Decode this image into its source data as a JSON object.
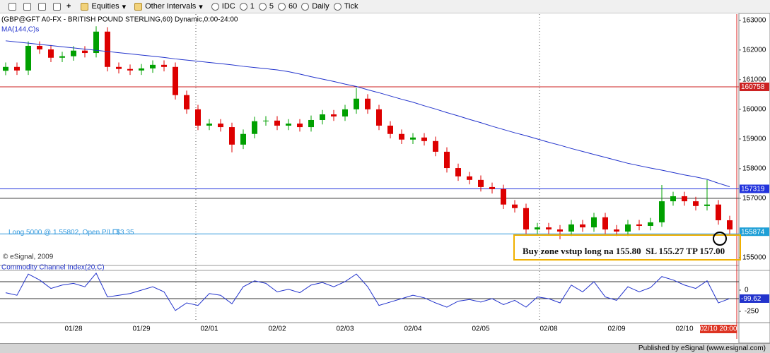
{
  "toolbar": {
    "items": [
      "Equities",
      "Other Intervals",
      "IDC",
      "1",
      "5",
      "60",
      "Daily",
      "Tick"
    ]
  },
  "annotation": "Buy zone vstup long na 155.80  SL 155.27 TP 157.00",
  "footer": "Published by eSignal (www.esignal.com)",
  "chart_data": [
    {
      "type": "candlestick",
      "title": "(GBP@GFT A0-FX - BRITISH POUND STERLING,60) Dynamic,0:00-24:00",
      "copyright": "© eSignal, 2009",
      "up_color": "#00a000",
      "down_color": "#dd0000",
      "categories": [
        null,
        null,
        null,
        null,
        null,
        null,
        "01/28",
        null,
        null,
        null,
        null,
        null,
        "01/29",
        null,
        null,
        null,
        null,
        null,
        "02/01",
        null,
        null,
        null,
        null,
        null,
        "02/02",
        null,
        null,
        null,
        null,
        null,
        "02/03",
        null,
        null,
        null,
        null,
        null,
        "02/04",
        null,
        null,
        null,
        null,
        null,
        "02/05",
        null,
        null,
        null,
        null,
        null,
        "02/08",
        null,
        null,
        null,
        null,
        null,
        "02/09",
        null,
        null,
        null,
        null,
        null,
        "02/10",
        null,
        null,
        "02/10 20:00",
        null
      ],
      "open": [
        161.3,
        161.43,
        161.31,
        162.14,
        162.02,
        161.74,
        161.79,
        161.98,
        161.9,
        162.62,
        161.43,
        161.36,
        161.31,
        161.38,
        161.5,
        161.43,
        160.48,
        160.0,
        159.45,
        159.52,
        159.4,
        158.81,
        159.17,
        159.6,
        159.62,
        159.45,
        159.52,
        159.4,
        159.64,
        159.83,
        159.76,
        160.0,
        160.36,
        160.0,
        159.45,
        159.17,
        158.98,
        159.05,
        158.93,
        158.57,
        158.02,
        157.74,
        157.62,
        157.38,
        157.31,
        156.79,
        156.67,
        155.95,
        156.02,
        155.95,
        155.88,
        156.12,
        156.02,
        156.36,
        155.95,
        155.88,
        156.12,
        156.07,
        156.19,
        156.9,
        157.07,
        156.9,
        156.74,
        156.79,
        156.26
      ],
      "high": [
        161.58,
        161.58,
        162.29,
        162.29,
        162.17,
        161.94,
        162.13,
        162.13,
        162.8,
        162.77,
        161.58,
        161.51,
        161.53,
        161.65,
        161.65,
        161.58,
        160.63,
        160.15,
        159.67,
        159.67,
        159.55,
        159.32,
        159.75,
        159.77,
        159.77,
        159.67,
        159.67,
        159.79,
        159.98,
        159.98,
        160.15,
        160.72,
        160.51,
        160.15,
        159.6,
        159.32,
        159.2,
        159.2,
        159.08,
        158.72,
        158.17,
        157.89,
        157.77,
        157.53,
        157.46,
        156.94,
        156.82,
        156.17,
        156.17,
        156.1,
        156.27,
        156.27,
        156.51,
        156.51,
        156.1,
        156.27,
        156.27,
        156.34,
        157.45,
        157.22,
        157.22,
        157.05,
        157.62,
        156.94,
        156.41
      ],
      "low": [
        161.15,
        161.16,
        161.16,
        161.87,
        161.59,
        161.59,
        161.64,
        161.75,
        161.75,
        161.28,
        161.21,
        161.16,
        161.16,
        161.23,
        161.28,
        160.33,
        159.85,
        159.3,
        159.3,
        159.25,
        158.55,
        158.66,
        159.02,
        159.45,
        159.3,
        159.3,
        159.25,
        159.25,
        159.49,
        159.61,
        159.61,
        159.85,
        159.85,
        159.3,
        159.02,
        158.83,
        158.83,
        158.78,
        158.42,
        157.87,
        157.59,
        157.47,
        157.23,
        157.16,
        156.64,
        156.52,
        155.8,
        155.8,
        155.8,
        155.62,
        155.73,
        155.87,
        155.87,
        155.8,
        155.73,
        155.73,
        155.92,
        155.92,
        156.04,
        156.75,
        156.75,
        156.59,
        156.59,
        156.11,
        155.8
      ],
      "close": [
        161.43,
        161.31,
        162.14,
        162.02,
        161.74,
        161.79,
        161.98,
        161.9,
        162.62,
        161.43,
        161.36,
        161.31,
        161.38,
        161.5,
        161.43,
        160.48,
        160.0,
        159.45,
        159.52,
        159.4,
        158.81,
        159.17,
        159.6,
        159.62,
        159.45,
        159.52,
        159.4,
        159.64,
        159.83,
        159.76,
        160.0,
        160.36,
        160.0,
        159.45,
        159.17,
        158.98,
        159.05,
        158.93,
        158.57,
        158.02,
        157.74,
        157.62,
        157.38,
        157.31,
        156.79,
        156.67,
        155.95,
        156.02,
        155.95,
        155.88,
        156.12,
        156.02,
        156.36,
        155.95,
        155.88,
        156.12,
        156.07,
        156.19,
        156.9,
        157.07,
        156.9,
        156.74,
        156.79,
        156.26,
        155.95
      ],
      "series": [
        {
          "name": "MA(144,C)s",
          "color": "#2233cc",
          "values": [
            162.31,
            162.27,
            162.23,
            162.19,
            162.15,
            162.11,
            162.07,
            162.03,
            161.99,
            161.95,
            161.91,
            161.87,
            161.83,
            161.79,
            161.75,
            161.7,
            161.66,
            161.62,
            161.58,
            161.54,
            161.5,
            161.45,
            161.41,
            161.37,
            161.33,
            161.27,
            161.19,
            161.1,
            161.02,
            160.94,
            160.85,
            160.77,
            160.66,
            160.56,
            160.45,
            160.34,
            160.24,
            160.12,
            160.01,
            159.89,
            159.78,
            159.66,
            159.55,
            159.43,
            159.32,
            159.21,
            159.11,
            159.0,
            158.89,
            158.79,
            158.68,
            158.58,
            158.48,
            158.38,
            158.28,
            158.18,
            158.1,
            158.02,
            157.95,
            157.87,
            157.79,
            157.72,
            157.64,
            157.51,
            157.39
          ]
        }
      ],
      "hlines": [
        {
          "value": 160.758,
          "label": "160758",
          "color": "#cc2222"
        },
        {
          "value": 157.319,
          "label": "157319",
          "color": "#2233dd"
        },
        {
          "value": 157,
          "color": "#333333"
        }
      ],
      "position": {
        "value": 155.802,
        "label": "Long 5000 @ 1.55802, Open P/L: $3.35",
        "color": "#3399dd"
      },
      "last": {
        "value": 155.874,
        "label": "155874",
        "color": "#1e9fd6"
      },
      "ylim": [
        154.76,
        163.21
      ],
      "yticks": [
        {
          "value": 163,
          "label": "163000"
        },
        {
          "value": 162,
          "label": "162000"
        },
        {
          "value": 161,
          "label": "161000"
        },
        {
          "value": 160,
          "label": "160000"
        },
        {
          "value": 159,
          "label": "159000"
        },
        {
          "value": 158,
          "label": "158000"
        },
        {
          "value": 157,
          "label": "157000"
        },
        {
          "value": 155,
          "label": "155000"
        }
      ]
    },
    {
      "type": "line",
      "title": "Commodity Channel Index(20,C)",
      "color": "#2233cc",
      "values": [
        -30,
        -60,
        190,
        120,
        20,
        60,
        80,
        40,
        200,
        -80,
        -60,
        -40,
        0,
        40,
        -20,
        -240,
        -150,
        -180,
        -40,
        -60,
        -160,
        40,
        110,
        80,
        -20,
        10,
        -30,
        60,
        90,
        40,
        100,
        190,
        40,
        -180,
        -140,
        -100,
        -60,
        -90,
        -150,
        -200,
        -130,
        -110,
        -140,
        -100,
        -170,
        -120,
        -200,
        -80,
        -100,
        -150,
        60,
        -20,
        100,
        -80,
        -120,
        40,
        -20,
        30,
        160,
        120,
        60,
        20,
        110,
        -150,
        -99.62
      ],
      "levels": [
        100,
        -100
      ],
      "ylim": [
        -366,
        216
      ],
      "yticks": [
        0,
        -250
      ]
    }
  ]
}
